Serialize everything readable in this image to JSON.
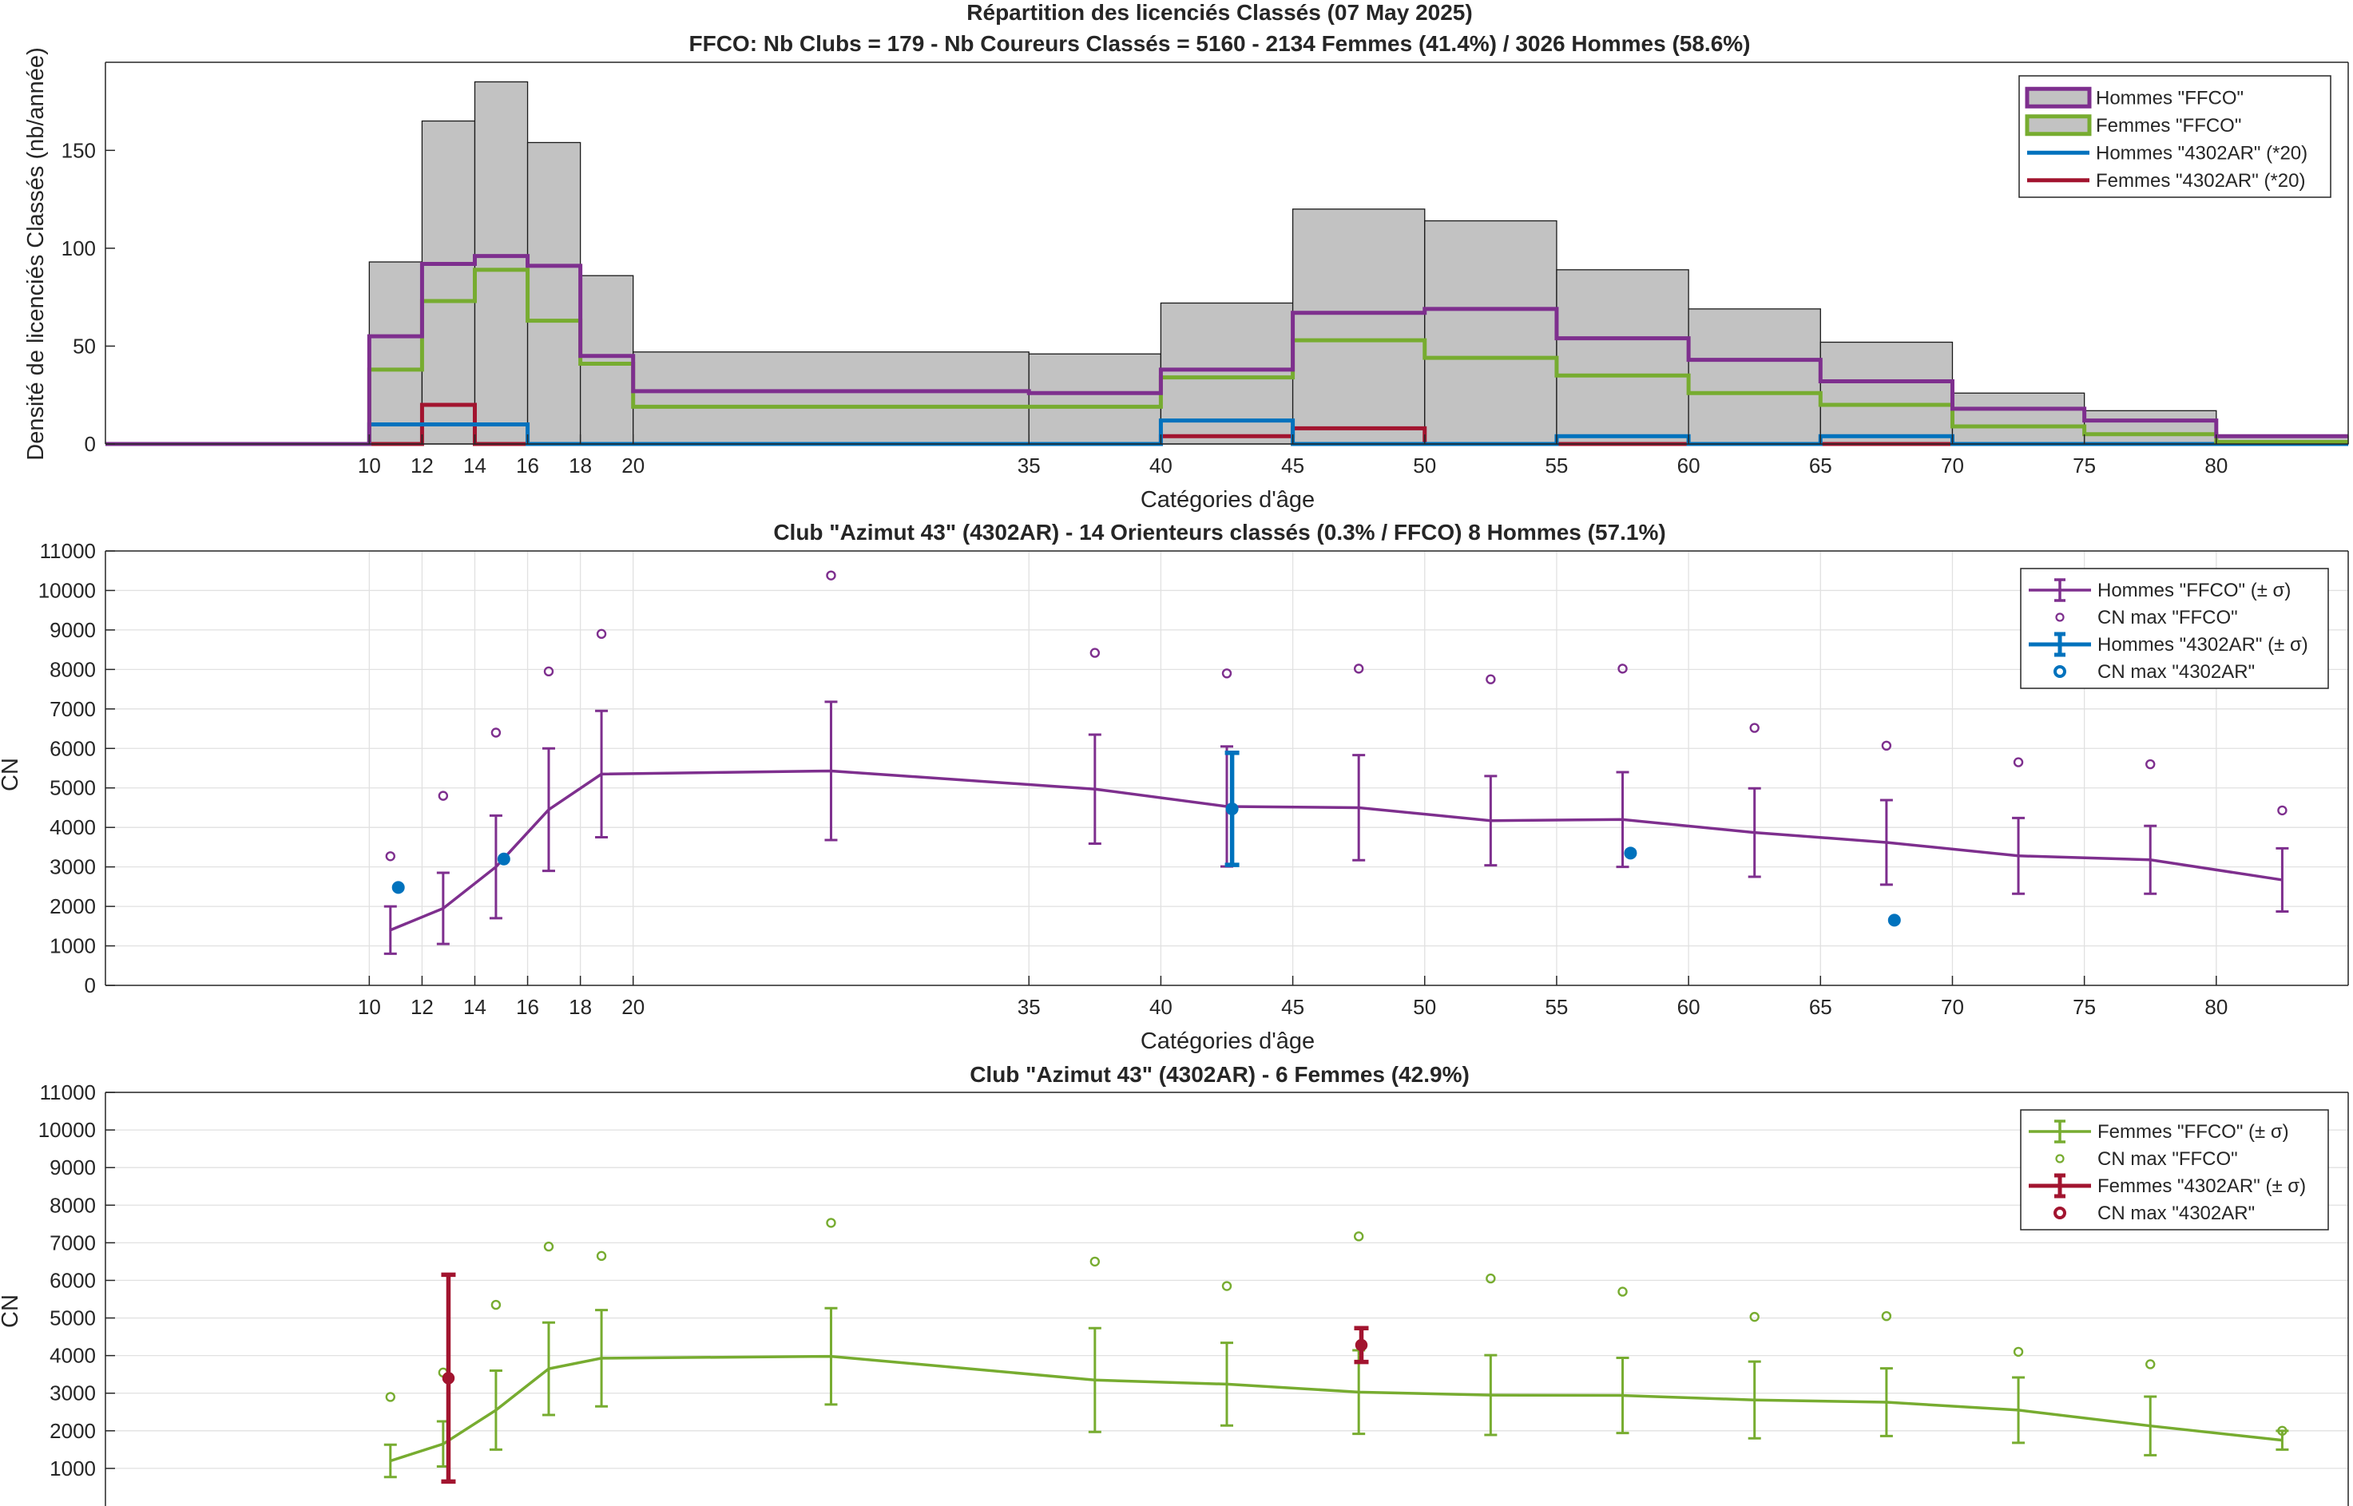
{
  "figure": {
    "title_line1": "Répartition des licenciés Classés (07 May 2025)",
    "title_line2": "FFCO: Nb Clubs = 179   -   Nb Coureurs Classés = 5160   -   2134 Femmes (41.4%) / 3026 Hommes (58.6%)"
  },
  "chart_data": [
    {
      "type": "bar",
      "title": "Répartition des licenciés Classés (07 May 2025)",
      "subtitle": "FFCO: Nb Clubs = 179   -   Nb Coureurs Classés = 5160   -   2134 Femmes (41.4%) / 3026 Hommes (58.6%)",
      "xlabel": "Catégories d'âge",
      "ylabel": "Densité de licenciés Classés (nb/année)",
      "xlim": [
        0,
        85
      ],
      "ylim": [
        0,
        195
      ],
      "xticks": [
        10,
        12,
        14,
        16,
        18,
        20,
        35,
        40,
        45,
        50,
        55,
        60,
        65,
        70,
        75,
        80
      ],
      "yticks": [
        0,
        50,
        100,
        150
      ],
      "grid": false,
      "legend_position": "top-right",
      "bin_edges": [
        0,
        10,
        12,
        14,
        16,
        18,
        20,
        35,
        40,
        45,
        50,
        55,
        60,
        65,
        70,
        75,
        80,
        85
      ],
      "total_values": [
        0,
        93,
        165,
        185,
        154,
        86,
        47,
        46,
        72,
        120,
        114,
        89,
        69,
        52,
        26,
        17,
        4
      ],
      "series": [
        {
          "name": "Hommes \"FFCO\"",
          "color": "#7E2F8E",
          "values": [
            0,
            55,
            92,
            96,
            91,
            45,
            27,
            26,
            38,
            67,
            69,
            54,
            43,
            32,
            18,
            12,
            4
          ]
        },
        {
          "name": "Femmes \"FFCO\"",
          "color": "#77AC30",
          "values": [
            0,
            38,
            73,
            89,
            63,
            41,
            19,
            19,
            34,
            53,
            44,
            35,
            26,
            20,
            9,
            5,
            1
          ]
        },
        {
          "name": "Hommes \"4302AR\" (*20)",
          "color": "#0072BD",
          "values": [
            0,
            10,
            10,
            10,
            0,
            0,
            0,
            0,
            12,
            0,
            0,
            4,
            0,
            4,
            0,
            0,
            0
          ]
        },
        {
          "name": "Femmes \"4302AR\" (*20)",
          "color": "#A2142F",
          "values": [
            0,
            0,
            20,
            0,
            0,
            0,
            0,
            0,
            4,
            8,
            0,
            0,
            0,
            0,
            0,
            0,
            0
          ]
        }
      ]
    },
    {
      "type": "line",
      "title": "Club \"Azimut 43\" (4302AR)  -  14 Orienteurs classés (0.3% / FFCO)  8 Hommes (57.1%)",
      "xlabel": "Catégories d'âge",
      "ylabel": "CN",
      "xlim": [
        0,
        85
      ],
      "ylim": [
        0,
        11000
      ],
      "xticks": [
        10,
        12,
        14,
        16,
        18,
        20,
        35,
        40,
        45,
        50,
        55,
        60,
        65,
        70,
        75,
        80
      ],
      "yticks": [
        0,
        1000,
        2000,
        3000,
        4000,
        5000,
        6000,
        7000,
        8000,
        9000,
        10000,
        11000
      ],
      "grid": true,
      "legend_position": "top-right",
      "series": [
        {
          "name": "Hommes \"FFCO\" (± σ)",
          "color": "#7E2F8E",
          "x": [
            10.8,
            12.8,
            14.8,
            16.8,
            18.8,
            27.5,
            37.5,
            42.5,
            47.5,
            52.5,
            57.5,
            62.5,
            67.5,
            72.5,
            77.5,
            82.5
          ],
          "y": [
            1400,
            1950,
            3000,
            4450,
            5350,
            5430,
            4970,
            4530,
            4500,
            4170,
            4200,
            3870,
            3620,
            3280,
            3180,
            2670
          ],
          "yerr": [
            600,
            900,
            1300,
            1550,
            1600,
            1750,
            1380,
            1520,
            1330,
            1130,
            1200,
            1120,
            1070,
            960,
            860,
            800
          ]
        },
        {
          "name": "CN max \"FFCO\"",
          "color": "#7E2F8E",
          "marker": "open-circle",
          "x": [
            10.8,
            12.8,
            14.8,
            16.8,
            18.8,
            27.5,
            37.5,
            42.5,
            47.5,
            52.5,
            57.5,
            62.5,
            67.5,
            72.5,
            77.5,
            82.5
          ],
          "y": [
            3270,
            4800,
            6400,
            7950,
            8900,
            10380,
            8420,
            7900,
            8020,
            7750,
            8020,
            6520,
            6070,
            5650,
            5600,
            4430
          ]
        },
        {
          "name": "Hommes \"4302AR\" (± σ)",
          "color": "#0072BD",
          "x": [
            42.7
          ],
          "y": [
            4470
          ],
          "yerr": [
            1420
          ]
        },
        {
          "name": "CN max \"4302AR\"",
          "color": "#0072BD",
          "marker": "filled-circle",
          "x": [
            11.1,
            15.1,
            42.7,
            57.8,
            67.8
          ],
          "y": [
            2480,
            3200,
            4470,
            3350,
            1650
          ]
        }
      ]
    },
    {
      "type": "line",
      "title": "Club \"Azimut 43\" (4302AR)  -  6 Femmes (42.9%)",
      "ylabel": "CN",
      "xlim": [
        0,
        85
      ],
      "ylim": [
        0,
        11000
      ],
      "yticks": [
        1000,
        2000,
        3000,
        4000,
        5000,
        6000,
        7000,
        8000,
        9000,
        10000,
        11000
      ],
      "grid": true,
      "legend_position": "top-right",
      "series": [
        {
          "name": "Femmes \"FFCO\" (± σ)",
          "color": "#77AC30",
          "x": [
            10.8,
            12.8,
            14.8,
            16.8,
            18.8,
            27.5,
            37.5,
            42.5,
            47.5,
            52.5,
            57.5,
            62.5,
            67.5,
            72.5,
            77.5,
            82.5
          ],
          "y": [
            1200,
            1650,
            2550,
            3650,
            3930,
            3980,
            3350,
            3240,
            3030,
            2950,
            2940,
            2820,
            2760,
            2550,
            2130,
            1750
          ],
          "yerr": [
            430,
            600,
            1050,
            1230,
            1280,
            1280,
            1380,
            1100,
            1110,
            1060,
            1000,
            1020,
            900,
            870,
            780,
            250
          ]
        },
        {
          "name": "CN max \"FFCO\"",
          "color": "#77AC30",
          "marker": "open-circle",
          "x": [
            10.8,
            12.8,
            14.8,
            16.8,
            18.8,
            27.5,
            37.5,
            42.5,
            47.5,
            52.5,
            57.5,
            62.5,
            67.5,
            72.5,
            77.5,
            82.5
          ],
          "y": [
            2900,
            3550,
            5350,
            6900,
            6650,
            7530,
            6500,
            5850,
            7170,
            6050,
            5700,
            5030,
            5050,
            4100,
            3770,
            2000
          ]
        },
        {
          "name": "Femmes \"4302AR\" (± σ)",
          "color": "#A2142F",
          "x": [
            13.0,
            47.6
          ],
          "y": [
            3400,
            4280
          ],
          "yerr": [
            2750,
            450
          ]
        },
        {
          "name": "CN max \"4302AR\"",
          "color": "#A2142F",
          "marker": "open-circle",
          "x": [
            13.0,
            47.6
          ],
          "y": [
            3400,
            4280
          ]
        }
      ]
    }
  ]
}
